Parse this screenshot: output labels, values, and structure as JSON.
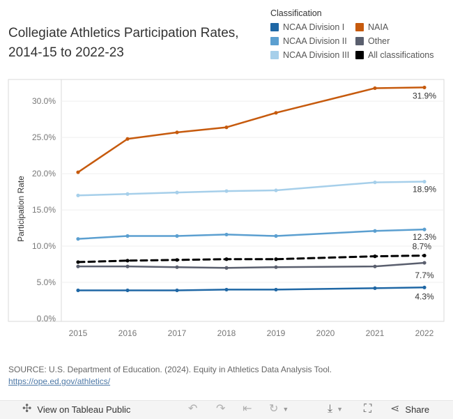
{
  "title": "Collegiate Athletics Participation Rates, 2014-15 to 2022-23",
  "legend": {
    "title": "Classification",
    "items": [
      {
        "label": "NCAA Division I",
        "color": "#1f67a5"
      },
      {
        "label": "NAIA",
        "color": "#c65a0d"
      },
      {
        "label": "NCAA Division II",
        "color": "#5b9fd0"
      },
      {
        "label": "Other",
        "color": "#5a5f6e"
      },
      {
        "label": "NCAA Division III",
        "color": "#a6cfea"
      },
      {
        "label": "All classifications",
        "color": "#000000"
      }
    ]
  },
  "chart_data": {
    "type": "line",
    "x": [
      2015,
      2016,
      2017,
      2018,
      2019,
      2021,
      2022
    ],
    "x_ticks": [
      "2015",
      "2016",
      "2017",
      "2018",
      "2019",
      "2020",
      "2021",
      "2022"
    ],
    "y_ticks": [
      "0.0%",
      "5.0%",
      "10.0%",
      "15.0%",
      "20.0%",
      "25.0%",
      "30.0%"
    ],
    "ylabel": "Participation Rate",
    "xlabel": "",
    "ylim": [
      0,
      33
    ],
    "series": [
      {
        "name": "NAIA",
        "color": "#c65a0d",
        "values": [
          20.2,
          24.8,
          25.7,
          26.4,
          28.4,
          31.8,
          31.9
        ],
        "end_label": "31.9%",
        "dashed": false
      },
      {
        "name": "NCAA Division III",
        "color": "#a6cfea",
        "values": [
          17.0,
          17.2,
          17.4,
          17.6,
          17.7,
          18.8,
          18.9
        ],
        "end_label": "18.9%",
        "dashed": false
      },
      {
        "name": "NCAA Division II",
        "color": "#5b9fd0",
        "values": [
          11.0,
          11.4,
          11.4,
          11.6,
          11.4,
          12.1,
          12.3
        ],
        "end_label": "12.3%",
        "dashed": false
      },
      {
        "name": "All classifications",
        "color": "#000000",
        "values": [
          7.8,
          8.0,
          8.1,
          8.2,
          8.2,
          8.6,
          8.7
        ],
        "end_label": "8.7%",
        "dashed": true
      },
      {
        "name": "Other",
        "color": "#5a5f6e",
        "values": [
          7.2,
          7.2,
          7.1,
          7.0,
          7.1,
          7.2,
          7.7
        ],
        "end_label": "7.7%",
        "dashed": false
      },
      {
        "name": "NCAA Division I",
        "color": "#1f67a5",
        "values": [
          3.9,
          3.9,
          3.9,
          4.0,
          4.0,
          4.2,
          4.3
        ],
        "end_label": "4.3%",
        "dashed": false
      }
    ]
  },
  "source": {
    "text": "SOURCE: U.S. Department of Education. (2024). Equity in Athletics Data Analysis Tool.",
    "link": "https://ope.ed.gov/athletics/"
  },
  "toolbar": {
    "view_label": "View on Tableau Public",
    "share_label": "Share"
  }
}
